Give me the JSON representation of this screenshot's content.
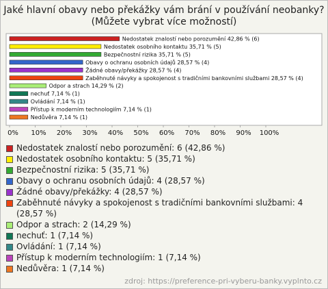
{
  "chart_data": {
    "type": "bar",
    "orientation": "horizontal",
    "title": "Jaké hlavní obavy nebo překážky vám brání v používání neobanky? (Můžete vybrat více možností)",
    "categories": [
      "Nedostatek znalostí nebo porozumění",
      "Nedostatek osobního kontaktu",
      "Bezpečnostní rizika",
      "Obavy o ochranu osobních údajů",
      "Žádné obavy/překážky",
      "Zaběhnuté návyky a spokojenost s tradičními bankovními službami",
      "Odpor a strach",
      "nechuť",
      "Ovládání",
      "Přístup k moderním technologiím",
      "Nedůvěra"
    ],
    "values": [
      42.86,
      35.71,
      35.71,
      28.57,
      28.57,
      28.57,
      14.29,
      7.14,
      7.14,
      7.14,
      7.14
    ],
    "value_labels": [
      "42,86 % (6)",
      "35,71 % (5)",
      "35,71 % (5)",
      "28,57 % (4)",
      "28,57 % (4)",
      "28,57 % (4)",
      "14,29 % (2)",
      "7,14 % (1)",
      "7,14 % (1)",
      "7,14 % (1)",
      "7,14 % (1)"
    ],
    "colors": [
      "#cc2222",
      "#ffee00",
      "#33aa33",
      "#3366cc",
      "#9933cc",
      "#ee4411",
      "#aaee77",
      "#117755",
      "#338888",
      "#bb44bb",
      "#ee7722"
    ],
    "legend": [
      "Nedostatek znalostí nebo porozumění: 6 (42,86 %)",
      "Nedostatek osobního kontaktu: 5 (35,71 %)",
      "Bezpečnostní rizika: 5 (35,71 %)",
      "Obavy o ochranu osobních údajů: 4 (28,57 %)",
      "Žádné obavy/překážky: 4 (28,57 %)",
      "Zaběhnuté návyky a spokojenost s tradičními bankovními službami: 4 (28,57 %)",
      "Odpor a strach: 2 (14,29 %)",
      "nechuť: 1 (7,14 %)",
      "Ovládání: 1 (7,14 %)",
      "Přístup k moderním technologiím: 1 (7,14 %)",
      "Nedůvěra: 1 (7,14 %)"
    ],
    "xlim": [
      0,
      100
    ],
    "xticks": [
      {
        "value": 0,
        "label": "0%"
      },
      {
        "value": 10,
        "label": "10%"
      },
      {
        "value": 20,
        "label": "20%"
      },
      {
        "value": 30,
        "label": "30%"
      },
      {
        "value": 40,
        "label": "40%"
      },
      {
        "value": 50,
        "label": "50%"
      },
      {
        "value": 60,
        "label": "60%"
      },
      {
        "value": 70,
        "label": "70%"
      },
      {
        "value": 80,
        "label": "80%"
      },
      {
        "value": 90,
        "label": "90%"
      },
      {
        "value": 100,
        "label": "100%"
      }
    ],
    "source": "zdroj: https://preference-pri-vyberu-banky.vyplnto.cz"
  }
}
